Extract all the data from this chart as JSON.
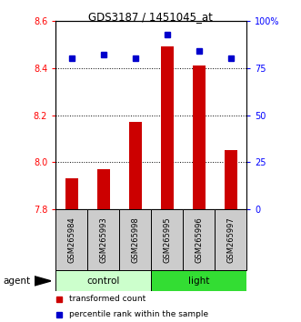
{
  "title": "GDS3187 / 1451045_at",
  "samples": [
    "GSM265984",
    "GSM265993",
    "GSM265998",
    "GSM265995",
    "GSM265996",
    "GSM265997"
  ],
  "red_values": [
    7.93,
    7.97,
    8.17,
    8.49,
    8.41,
    8.05
  ],
  "blue_values": [
    80,
    82,
    80,
    93,
    84,
    80
  ],
  "ymin": 7.8,
  "ymax": 8.6,
  "y_ticks": [
    7.8,
    8.0,
    8.2,
    8.4,
    8.6
  ],
  "y_ticks_right": [
    0,
    25,
    50,
    75,
    100
  ],
  "bar_color": "#cc0000",
  "dot_color": "#0000cc",
  "label_box_color": "#cccccc",
  "control_color": "#ccffcc",
  "light_color": "#33dd33",
  "group_defs": [
    {
      "name": "control",
      "start": 0,
      "end": 2,
      "color_key": "control_color"
    },
    {
      "name": "light",
      "start": 3,
      "end": 5,
      "color_key": "light_color"
    }
  ],
  "legend_red": "transformed count",
  "legend_blue": "percentile rank within the sample",
  "agent_label": "agent",
  "grid_lines": [
    8.0,
    8.2,
    8.4
  ],
  "right_tick_labels": [
    "0",
    "25",
    "50",
    "75",
    "100%"
  ]
}
